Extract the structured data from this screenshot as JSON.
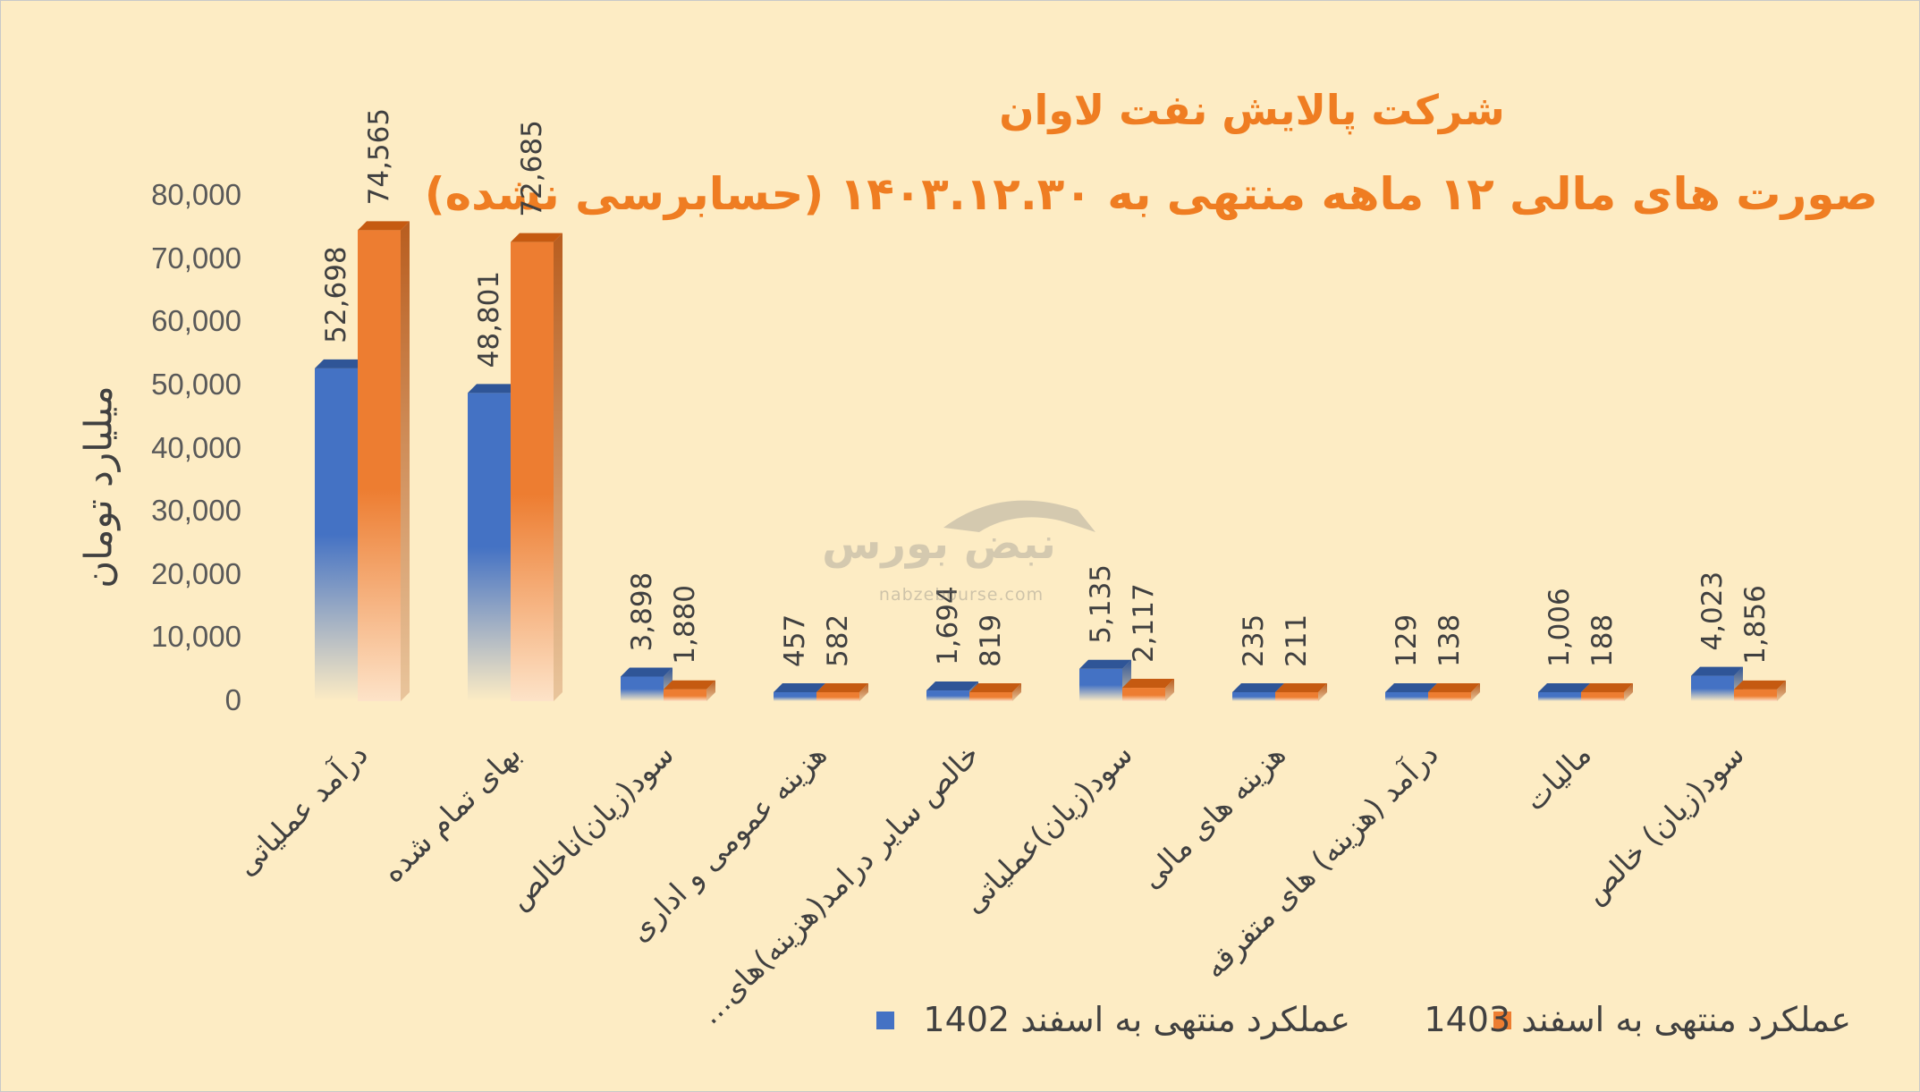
{
  "title": "شرکت پالایش نفت لاوان",
  "subtitle": "صورت های مالی ۱۲ ماهه منتهی به ۱۴۰۳.۱۲.۳۰ (حسابرسی نشده)",
  "watermark": {
    "brand": "نبض بورس",
    "url": "nabzebourse.com"
  },
  "colors": {
    "series_1402": "#4472c4",
    "series_1403": "#ed7d31",
    "background": "#fdecc4"
  },
  "chart_data": {
    "type": "bar",
    "title": "شرکت پالایش نفت لاوان",
    "subtitle": "صورت های مالی ۱۲ ماهه منتهی به ۱۴۰۳.۱۲.۳۰ (حسابرسی نشده)",
    "ylabel": "میلیارد تومان",
    "xlabel": "",
    "ylim": [
      0,
      80000
    ],
    "yticks": [
      "0",
      "10,000",
      "20,000",
      "30,000",
      "40,000",
      "50,000",
      "60,000",
      "70,000",
      "80,000"
    ],
    "grid": false,
    "legend_position": "bottom-right",
    "categories": [
      "درآمد عملیاتی",
      "بهای تمام شده",
      "سود(زیان)ناخالص",
      "هزینه عمومی و اداری",
      "خالص سایر درامد(هزینه)های…",
      "سود(زیان)عملیاتی",
      "هزینه های مالی",
      "درآمد (هزینه) های متفرقه",
      "مالیات",
      "سود(زیان) خالص"
    ],
    "series": [
      {
        "name": "عملکرد منتهی به اسفند 1402",
        "values": [
          52698,
          48801,
          3898,
          457,
          1694,
          5135,
          235,
          129,
          1006,
          4023
        ],
        "labels": [
          "52,698",
          "48,801",
          "3,898",
          "457",
          "1,694",
          "5,135",
          "235",
          "129",
          "1,006",
          "4,023"
        ]
      },
      {
        "name": "عملکرد منتهی به اسفند 1403",
        "values": [
          74565,
          72685,
          1880,
          582,
          819,
          2117,
          211,
          138,
          188,
          1856
        ],
        "labels": [
          "74,565",
          "72,685",
          "1,880",
          "582",
          "819",
          "2,117",
          "211",
          "138",
          "188",
          "1,856"
        ]
      }
    ]
  }
}
